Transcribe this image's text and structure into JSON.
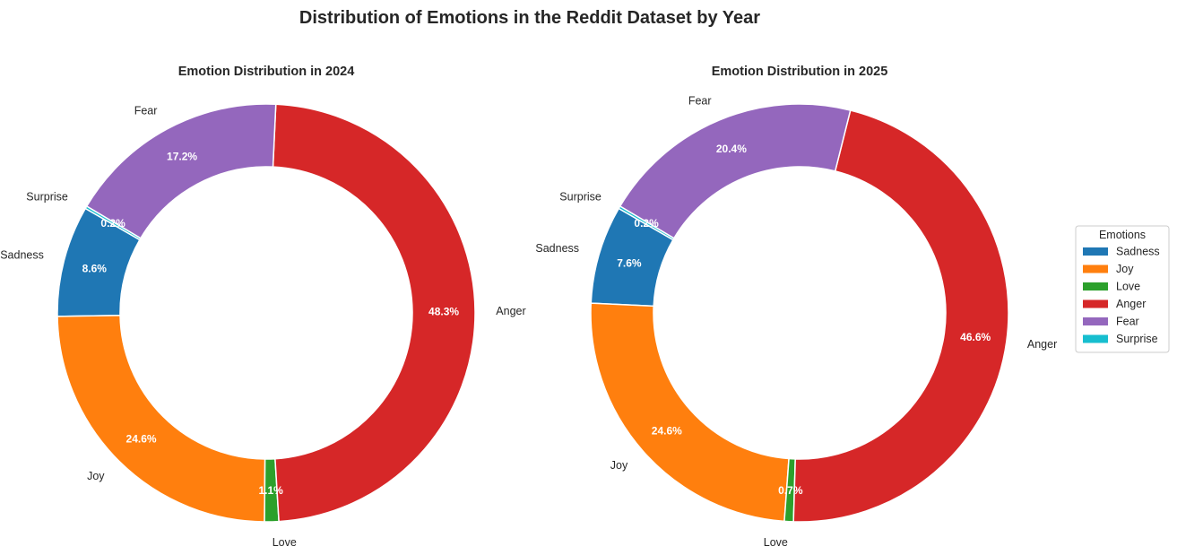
{
  "chart_data": {
    "type": "pie",
    "donut": true,
    "title": "Distribution of Emotions in the Reddit Dataset by Year",
    "categories": [
      "Sadness",
      "Joy",
      "Love",
      "Anger",
      "Fear",
      "Surprise"
    ],
    "colors": [
      "#1f77b4",
      "#ff7f0e",
      "#2ca02c",
      "#d62728",
      "#9467bd",
      "#17becf"
    ],
    "charts": [
      {
        "title": "Emotion Distribution in 2024",
        "values": [
          8.6,
          24.6,
          1.1,
          48.3,
          17.2,
          0.2
        ],
        "labels": [
          "8.6%",
          "24.6%",
          "1.1%",
          "48.3%",
          "17.2%",
          "0.2%"
        ]
      },
      {
        "title": "Emotion Distribution in 2025",
        "values": [
          7.6,
          24.6,
          0.7,
          46.6,
          20.4,
          0.2
        ],
        "labels": [
          "7.6%",
          "24.6%",
          "0.7%",
          "46.6%",
          "20.4%",
          "0.2%"
        ]
      }
    ],
    "legend": {
      "title": "Emotions",
      "placement": "center-right",
      "entries": [
        "Sadness",
        "Joy",
        "Love",
        "Anger",
        "Fear",
        "Surprise"
      ]
    }
  }
}
